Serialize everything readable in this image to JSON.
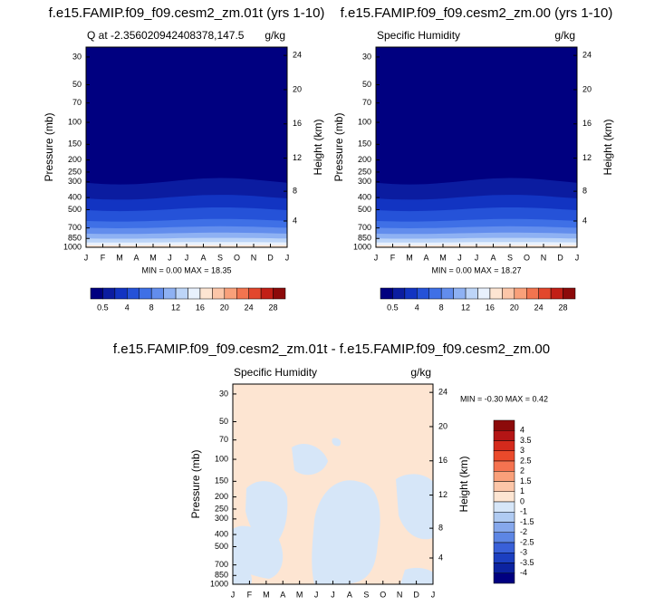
{
  "chart_data": [
    {
      "type": "contour",
      "title": "f.e15.FAMIP.f09_f09.cesm2_zm.01t (yrs 1-10)",
      "subtitle": "Q at -2.356020942408378,147.5",
      "units": "g/kg",
      "min_max": "MIN =   0.00 MAX =  18.35",
      "ylabel": "Pressure (mb)",
      "y2label": "Height (km)",
      "categories": [
        "J",
        "F",
        "M",
        "A",
        "M",
        "J",
        "J",
        "A",
        "S",
        "O",
        "N",
        "D",
        "J"
      ],
      "ylim": [
        1000,
        25
      ],
      "log_scale": true,
      "yticks": [
        30,
        50,
        70,
        100,
        150,
        200,
        250,
        300,
        400,
        500,
        700,
        850,
        1000
      ],
      "y2ticks": [
        4,
        8,
        12,
        16,
        20,
        24
      ],
      "colorbar": {
        "orientation": "horizontal",
        "labels": [
          0.5,
          4,
          8,
          12,
          16,
          20,
          24,
          28
        ],
        "colors": [
          "#000080",
          "#0b1ca0",
          "#1234c2",
          "#2552d8",
          "#3f70e6",
          "#628ded",
          "#8eb1f3",
          "#bdd5f8",
          "#e8f1fd",
          "#fde5d2",
          "#fcc6a8",
          "#f9a07a",
          "#f2744f",
          "#e2472d",
          "#c21f16",
          "#8c0a0a"
        ]
      }
    },
    {
      "type": "contour",
      "title": "f.e15.FAMIP.f09_f09.cesm2_zm.00 (yrs 1-10)",
      "subtitle": "Specific Humidity",
      "units": "g/kg",
      "min_max": "MIN =   0.00 MAX =  18.27",
      "ylabel": "Pressure (mb)",
      "y2label": "Height (km)",
      "categories": [
        "J",
        "F",
        "M",
        "A",
        "M",
        "J",
        "J",
        "A",
        "S",
        "O",
        "N",
        "D",
        "J"
      ],
      "ylim": [
        1000,
        25
      ],
      "log_scale": true,
      "yticks": [
        30,
        50,
        70,
        100,
        150,
        200,
        250,
        300,
        400,
        500,
        700,
        850,
        1000
      ],
      "y2ticks": [
        4,
        8,
        12,
        16,
        20,
        24
      ],
      "colorbar": {
        "orientation": "horizontal",
        "labels": [
          0.5,
          4,
          8,
          12,
          16,
          20,
          24,
          28
        ],
        "colors": [
          "#000080",
          "#0b1ca0",
          "#1234c2",
          "#2552d8",
          "#3f70e6",
          "#628ded",
          "#8eb1f3",
          "#bdd5f8",
          "#e8f1fd",
          "#fde5d2",
          "#fcc6a8",
          "#f9a07a",
          "#f2744f",
          "#e2472d",
          "#c21f16",
          "#8c0a0a"
        ]
      }
    },
    {
      "type": "contour",
      "title": "f.e15.FAMIP.f09_f09.cesm2_zm.01t - f.e15.FAMIP.f09_f09.cesm2_zm.00",
      "subtitle": "Specific Humidity",
      "units": "g/kg",
      "min_max": "MIN =  -0.30 MAX =   0.42",
      "ylabel": "Pressure (mb)",
      "y2label": "Height (km)",
      "categories": [
        "J",
        "F",
        "M",
        "A",
        "M",
        "J",
        "J",
        "A",
        "S",
        "O",
        "N",
        "D",
        "J"
      ],
      "ylim": [
        1000,
        25
      ],
      "log_scale": true,
      "yticks": [
        30,
        50,
        70,
        100,
        150,
        200,
        250,
        300,
        400,
        500,
        700,
        850,
        1000
      ],
      "y2ticks": [
        4,
        8,
        12,
        16,
        20,
        24
      ],
      "colorbar": {
        "orientation": "vertical",
        "labels": [
          4,
          3.5,
          3,
          2.5,
          2,
          1.5,
          1,
          0,
          -1,
          -1.5,
          -2,
          -2.5,
          -3,
          -3.5,
          -4
        ],
        "colors": [
          "#8c0a0a",
          "#b41515",
          "#d42a1c",
          "#ea4a2b",
          "#f57350",
          "#f9a07a",
          "#fcc6a8",
          "#fde5d2",
          "#d6e6f8",
          "#b0cbf2",
          "#86a8ec",
          "#5d86e4",
          "#3960d8",
          "#1c3fc0",
          "#0c23a0",
          "#000080"
        ]
      }
    }
  ]
}
